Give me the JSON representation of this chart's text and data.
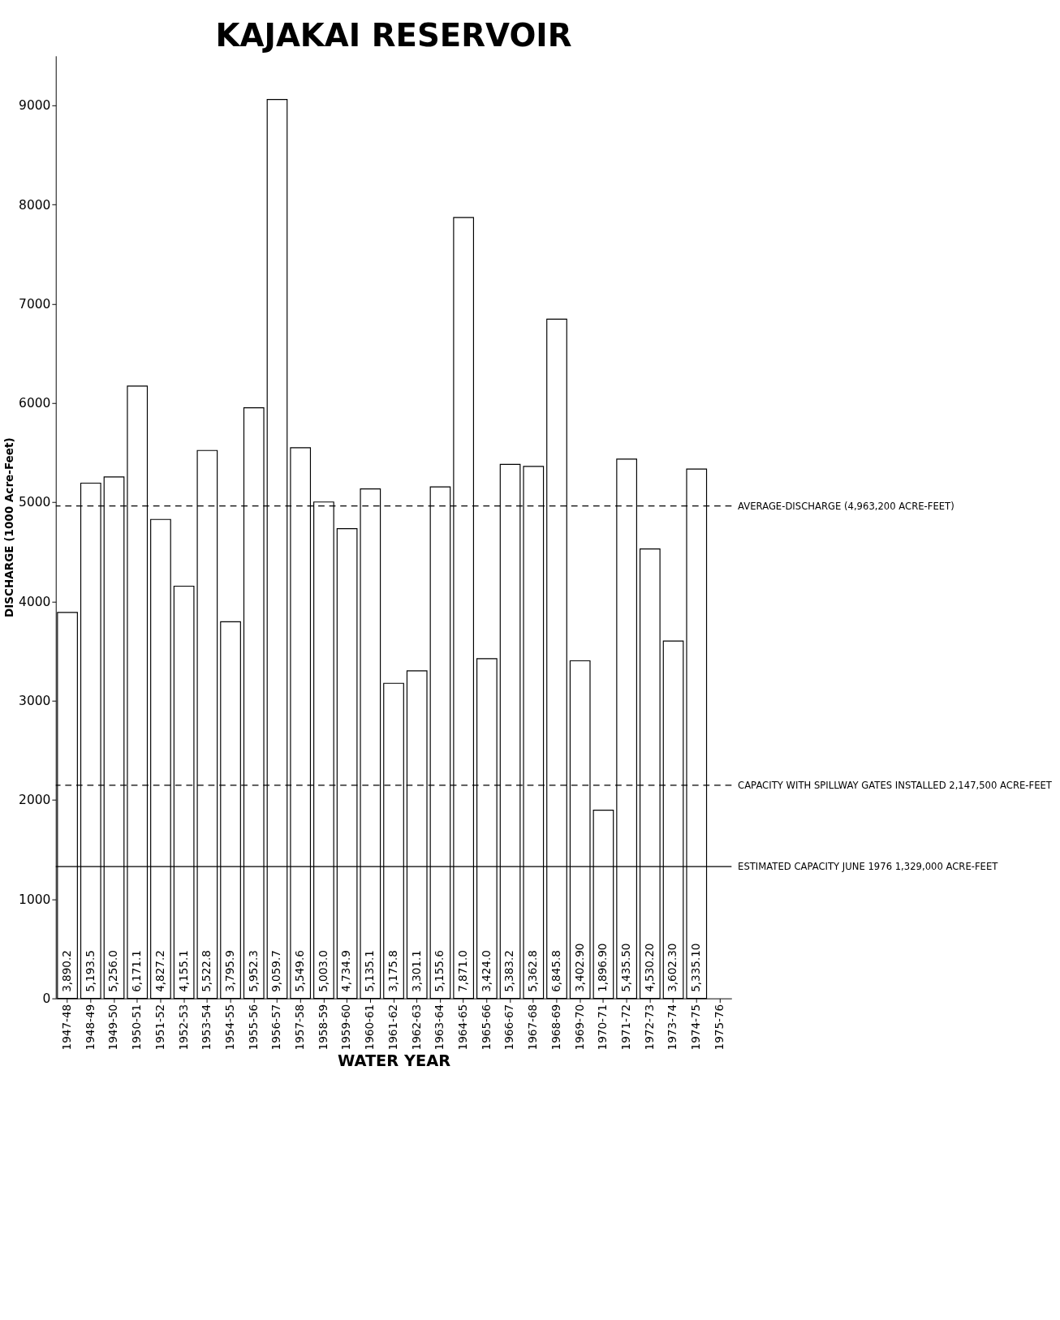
{
  "chart_data": {
    "type": "bar",
    "title": "KAJAKAI RESERVOIR",
    "xlabel": "WATER YEAR",
    "ylabel": "DISCHARGE (1000 Acre-Feet)",
    "categories": [
      "1947-48",
      "1948-49",
      "1949-50",
      "1950-51",
      "1951-52",
      "1952-53",
      "1953-54",
      "1954-55",
      "1955-56",
      "1956-57",
      "1957-58",
      "1958-59",
      "1959-60",
      "1960-61",
      "1961-62",
      "1962-63",
      "1963-64",
      "1964-65",
      "1965-66",
      "1966-67",
      "1967-68",
      "1968-69",
      "1969-70",
      "1970-71",
      "1971-72",
      "1972-73",
      "1973-74",
      "1974-75",
      "1975-76"
    ],
    "values": [
      3890.2,
      5193.5,
      5256.0,
      6171.1,
      4827.2,
      4155.1,
      5522.8,
      3795.9,
      5952.3,
      9059.7,
      5549.6,
      5003.0,
      4734.9,
      5135.1,
      3175.8,
      3301.1,
      5155.6,
      7871.0,
      3424.0,
      5383.2,
      5362.8,
      6845.8,
      3402.9,
      1896.9,
      5435.5,
      4530.2,
      3602.3,
      5335.1,
      null
    ],
    "value_labels": [
      "3,890.2",
      "5,193.5",
      "5,256.0",
      "6,171.1",
      "4,827.2",
      "4,155.1",
      "5,522.8",
      "3,795.9",
      "5,952.3",
      "9,059.7",
      "5,549.6",
      "5,003.0",
      "4,734.9",
      "5,135.1",
      "3,175.8",
      "3,301.1",
      "5,155.6",
      "7,871.0",
      "3,424.0",
      "5,383.2",
      "5,362.8",
      "6,845.8",
      "3,402.90",
      "1,896.90",
      "5,435.50",
      "4,530.20",
      "3,602.30",
      "5,335.10",
      null
    ],
    "color": "#ffffff",
    "ylim": [
      0,
      9500
    ],
    "yticks": [
      0,
      1000,
      2000,
      3000,
      4000,
      5000,
      6000,
      7000,
      8000,
      9000
    ],
    "grid": false,
    "ref_lines": [
      {
        "axis": "y",
        "value": 4963.2,
        "label": "AVERAGE-DISCHARGE (4,963,200 ACRE-FEET)",
        "line_style": "dashed",
        "color": "#000000"
      },
      {
        "axis": "y",
        "value": 2147.5,
        "label": "CAPACITY WITH SPILLWAY GATES INSTALLED 2,147,500 ACRE-FEET",
        "line_style": "dashed",
        "color": "#000000"
      },
      {
        "axis": "y",
        "value": 1329,
        "label": "ESTIMATED CAPACITY JUNE 1976 1,329,000 ACRE-FEET",
        "line_style": "solid",
        "color": "#000000"
      }
    ]
  }
}
